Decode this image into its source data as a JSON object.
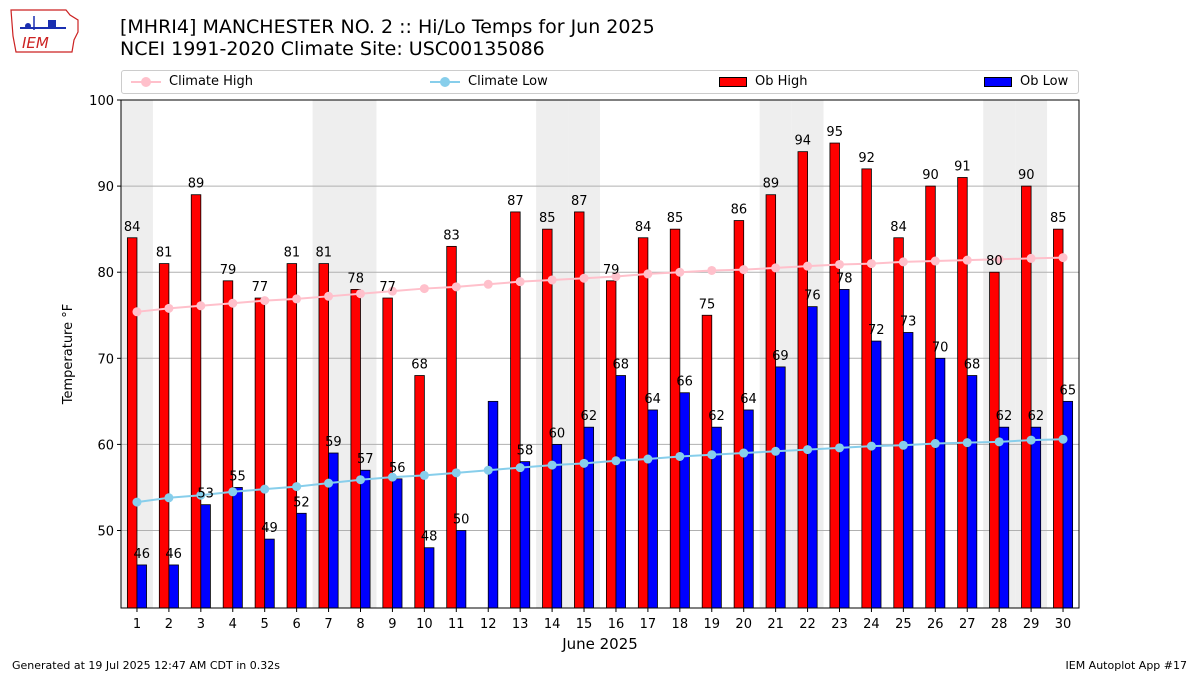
{
  "title_line1": "[MHRI4] MANCHESTER NO. 2 :: Hi/Lo Temps for Jun 2025",
  "title_line2": "NCEI 1991-2020 Climate Site: USC00135086",
  "logo_text": "IEM",
  "footer_left": "Generated at 19 Jul 2025 12:47 AM CDT in 0.32s",
  "footer_right": "IEM Autoplot App #17",
  "colors": {
    "ob_high": "#ff0000",
    "ob_low": "#0000ff",
    "climate_high": "#ffc0cb",
    "climate_low": "#87ceeb",
    "weekend_shade": "#eeeeee"
  },
  "legend": {
    "climate_high": "Climate High",
    "climate_low": "Climate Low",
    "ob_high": "Ob High",
    "ob_low": "Ob Low"
  },
  "chart_data": {
    "type": "bar",
    "xlabel": "June 2025",
    "ylabel": "Temperature °F",
    "ylim": [
      41,
      100
    ],
    "yticks": [
      50,
      60,
      70,
      80,
      90,
      100
    ],
    "grid": "horizontal",
    "legend_placement": "top",
    "categories": [
      1,
      2,
      3,
      4,
      5,
      6,
      7,
      8,
      9,
      10,
      11,
      12,
      13,
      14,
      15,
      16,
      17,
      18,
      19,
      20,
      21,
      22,
      23,
      24,
      25,
      26,
      27,
      28,
      29,
      30
    ],
    "shaded_days": [
      1,
      7,
      8,
      14,
      15,
      21,
      22,
      28,
      29
    ],
    "series": [
      {
        "name": "Ob High",
        "type": "bar",
        "values": [
          84,
          81,
          89,
          79,
          77,
          81,
          81,
          78,
          77,
          68,
          83,
          null,
          87,
          85,
          87,
          79,
          84,
          85,
          75,
          86,
          89,
          94,
          95,
          92,
          84,
          90,
          91,
          80,
          90,
          85
        ]
      },
      {
        "name": "Ob Low",
        "type": "bar",
        "values": [
          46,
          46,
          53,
          55,
          49,
          52,
          59,
          57,
          56,
          48,
          50,
          65,
          58,
          60,
          62,
          68,
          64,
          66,
          62,
          64,
          69,
          76,
          78,
          72,
          73,
          70,
          68,
          62,
          62,
          65
        ],
        "labels_shown": [
          true,
          true,
          true,
          true,
          true,
          true,
          true,
          true,
          true,
          true,
          true,
          false,
          true,
          true,
          true,
          true,
          true,
          true,
          true,
          true,
          true,
          true,
          true,
          true,
          true,
          true,
          true,
          true,
          true,
          true
        ]
      },
      {
        "name": "Climate High",
        "type": "line",
        "values": [
          75.4,
          75.8,
          76.1,
          76.4,
          76.7,
          76.9,
          77.2,
          77.5,
          77.8,
          78.1,
          78.3,
          78.6,
          78.9,
          79.1,
          79.3,
          79.5,
          79.8,
          80.0,
          80.2,
          80.3,
          80.5,
          80.7,
          80.9,
          81.0,
          81.2,
          81.3,
          81.4,
          81.5,
          81.6,
          81.7
        ]
      },
      {
        "name": "Climate Low",
        "type": "line",
        "values": [
          53.3,
          53.8,
          54.1,
          54.5,
          54.8,
          55.1,
          55.5,
          55.9,
          56.2,
          56.4,
          56.7,
          57.0,
          57.3,
          57.6,
          57.8,
          58.1,
          58.3,
          58.6,
          58.8,
          59.0,
          59.2,
          59.4,
          59.6,
          59.8,
          59.9,
          60.1,
          60.2,
          60.3,
          60.5,
          60.6
        ]
      }
    ]
  }
}
